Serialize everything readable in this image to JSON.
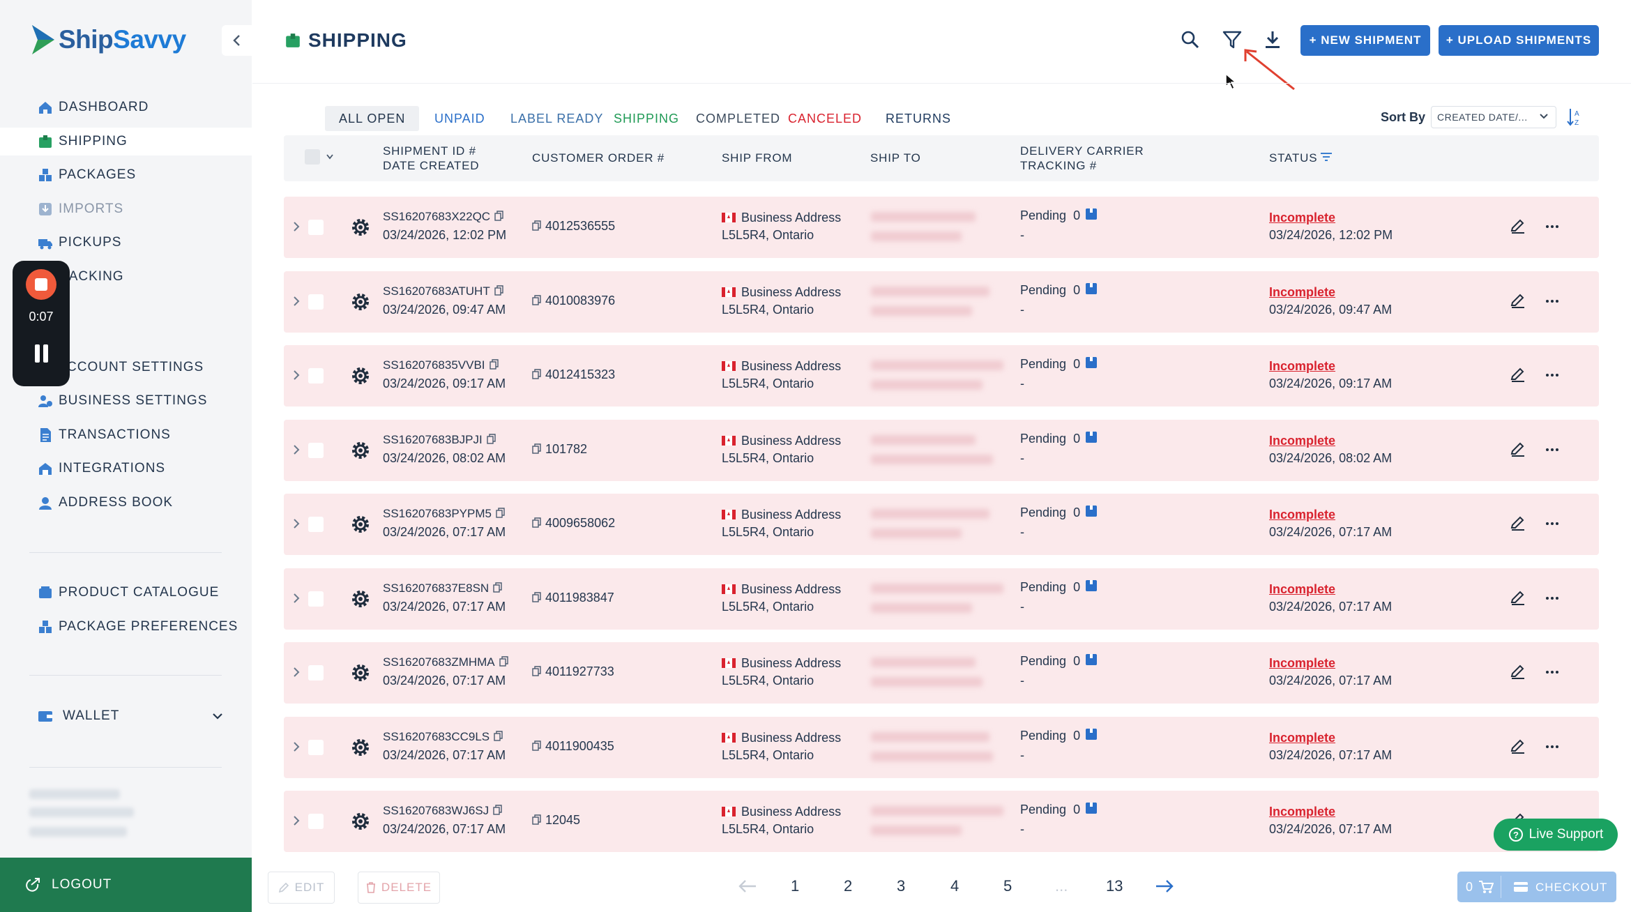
{
  "app": {
    "logo_text_a": "Ship",
    "logo_text_b": "Savvy",
    "brand_color": "#2a5f9e"
  },
  "sidebar": {
    "items": [
      {
        "label": "DASHBOARD",
        "icon": "home-icon"
      },
      {
        "label": "SHIPPING",
        "icon": "box-icon",
        "active": true
      },
      {
        "label": "PACKAGES",
        "icon": "packages-icon"
      },
      {
        "label": "IMPORTS",
        "icon": "imports-icon"
      },
      {
        "label": "PICKUPS",
        "icon": "truck-icon"
      },
      {
        "label": "RACKING",
        "icon": "tracking-icon"
      },
      {
        "label": "CCOUNT SETTINGS",
        "icon": "user-gear-icon"
      },
      {
        "label": "BUSINESS SETTINGS",
        "icon": "business-icon"
      },
      {
        "label": "TRANSACTIONS",
        "icon": "document-icon"
      },
      {
        "label": "INTEGRATIONS",
        "icon": "integration-icon"
      },
      {
        "label": "ADDRESS BOOK",
        "icon": "address-book-icon"
      },
      {
        "label": "PRODUCT CATALOGUE",
        "icon": "catalogue-icon"
      },
      {
        "label": "PACKAGE PREFERENCES",
        "icon": "preferences-icon"
      },
      {
        "label": "WALLET",
        "icon": "wallet-icon"
      }
    ],
    "logout": "LOGOUT"
  },
  "recorder": {
    "time": "0:07"
  },
  "header": {
    "title": "SHIPPING",
    "new_shipment": "+ NEW SHIPMENT",
    "upload_shipments": "+ UPLOAD SHIPMENTS"
  },
  "tabs": [
    "ALL OPEN",
    "UNPAID",
    "LABEL READY",
    "SHIPPING",
    "COMPLETED",
    "CANCELED",
    "RETURNS"
  ],
  "sort": {
    "label": "Sort By",
    "value": "CREATED DATE/..."
  },
  "table": {
    "headers": {
      "shipment_id": "SHIPMENT ID #",
      "date_created": "DATE CREATED",
      "customer_order": "CUSTOMER ORDER #",
      "ship_from": "SHIP FROM",
      "ship_to": "SHIP TO",
      "delivery_carrier": "DELIVERY CARRIER",
      "tracking": "TRACKING #",
      "status": "STATUS"
    },
    "rows": [
      {
        "id": "SS16207683X22QC",
        "date": "03/24/2026, 12:02 PM",
        "order": "4012536555",
        "from_name": "Business Address",
        "from_loc": "L5L5R4, Ontario",
        "carrier": "Pending",
        "count": "0",
        "tracking": "-",
        "status": "Incomplete",
        "status_date": "03/24/2026, 12:02 PM"
      },
      {
        "id": "SS16207683ATUHT",
        "date": "03/24/2026, 09:47 AM",
        "order": "4010083976",
        "from_name": "Business Address",
        "from_loc": "L5L5R4, Ontario",
        "carrier": "Pending",
        "count": "0",
        "tracking": "-",
        "status": "Incomplete",
        "status_date": "03/24/2026, 09:47 AM"
      },
      {
        "id": "SS162076835VVBI",
        "date": "03/24/2026, 09:17 AM",
        "order": "4012415323",
        "from_name": "Business Address",
        "from_loc": "L5L5R4, Ontario",
        "carrier": "Pending",
        "count": "0",
        "tracking": "-",
        "status": "Incomplete",
        "status_date": "03/24/2026, 09:17 AM"
      },
      {
        "id": "SS16207683BJPJI",
        "date": "03/24/2026, 08:02 AM",
        "order": "101782",
        "from_name": "Business Address",
        "from_loc": "L5L5R4, Ontario",
        "carrier": "Pending",
        "count": "0",
        "tracking": "-",
        "status": "Incomplete",
        "status_date": "03/24/2026, 08:02 AM"
      },
      {
        "id": "SS16207683PYPM5",
        "date": "03/24/2026, 07:17 AM",
        "order": "4009658062",
        "from_name": "Business Address",
        "from_loc": "L5L5R4, Ontario",
        "carrier": "Pending",
        "count": "0",
        "tracking": "-",
        "status": "Incomplete",
        "status_date": "03/24/2026, 07:17 AM"
      },
      {
        "id": "SS162076837E8SN",
        "date": "03/24/2026, 07:17 AM",
        "order": "4011983847",
        "from_name": "Business Address",
        "from_loc": "L5L5R4, Ontario",
        "carrier": "Pending",
        "count": "0",
        "tracking": "-",
        "status": "Incomplete",
        "status_date": "03/24/2026, 07:17 AM"
      },
      {
        "id": "SS16207683ZMHMA",
        "date": "03/24/2026, 07:17 AM",
        "order": "4011927733",
        "from_name": "Business Address",
        "from_loc": "L5L5R4, Ontario",
        "carrier": "Pending",
        "count": "0",
        "tracking": "-",
        "status": "Incomplete",
        "status_date": "03/24/2026, 07:17 AM"
      },
      {
        "id": "SS16207683CC9LS",
        "date": "03/24/2026, 07:17 AM",
        "order": "4011900435",
        "from_name": "Business Address",
        "from_loc": "L5L5R4, Ontario",
        "carrier": "Pending",
        "count": "0",
        "tracking": "-",
        "status": "Incomplete",
        "status_date": "03/24/2026, 07:17 AM"
      },
      {
        "id": "SS16207683WJ6SJ",
        "date": "03/24/2026, 07:17 AM",
        "order": "12045",
        "from_name": "Business Address",
        "from_loc": "L5L5R4, Ontario",
        "carrier": "Pending",
        "count": "0",
        "tracking": "-",
        "status": "Incomplete",
        "status_date": "03/24/2026, 07:17 AM"
      }
    ]
  },
  "footer": {
    "edit": "EDIT",
    "delete": "DELETE",
    "pages": [
      "1",
      "2",
      "3",
      "4",
      "5",
      "...",
      "13"
    ],
    "live_support": "Live Support",
    "cart_count": "0",
    "checkout": "CHECKOUT"
  },
  "colors": {
    "accent": "#2a6fc9",
    "incomplete": "#d9232f",
    "row_bg": "#fbe9eb",
    "logout_bg": "#1f7a4f",
    "live_support": "#1aa261"
  }
}
